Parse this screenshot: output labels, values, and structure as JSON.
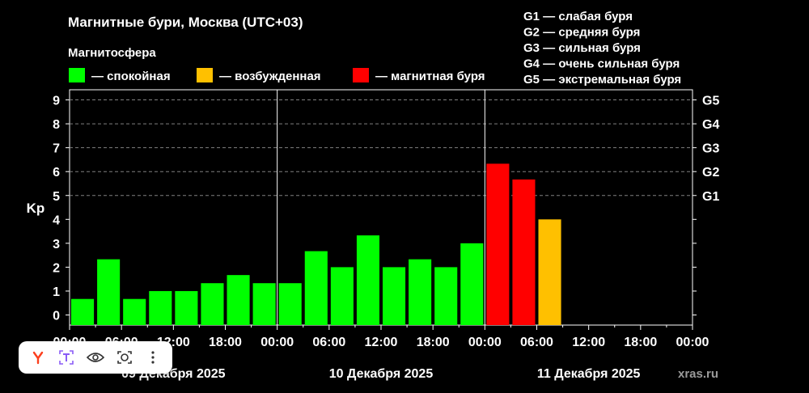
{
  "colors": {
    "background": "#000000",
    "quiet": "#00ff00",
    "excited": "#ffc000",
    "storm": "#ff0000",
    "text": "#ffffff",
    "grid": "#808080"
  },
  "chart_data": {
    "type": "bar",
    "title": "Магнитные бури, Москва (UTC+03)",
    "legend_title": "Магнитосфера",
    "legend": [
      {
        "label": "— спокойная",
        "color_key": "quiet"
      },
      {
        "label": "— возбужденная",
        "color_key": "excited"
      },
      {
        "label": "— магнитная буря",
        "color_key": "storm"
      }
    ],
    "g_scale_legend": [
      "G1 — слабая буря",
      "G2 — средняя буря",
      "G3 — сильная буря",
      "G4 — очень сильная буря",
      "G5 — экстремальная буря"
    ],
    "ylabel": "Kp",
    "ylim": [
      0,
      9
    ],
    "y_ticks": [
      "0",
      "1",
      "2",
      "3",
      "4",
      "5",
      "6",
      "7",
      "8",
      "9"
    ],
    "right_ticks": [
      {
        "label": "G1",
        "kp": 5
      },
      {
        "label": "G2",
        "kp": 6
      },
      {
        "label": "G3",
        "kp": 7
      },
      {
        "label": "G4",
        "kp": 8
      },
      {
        "label": "G5",
        "kp": 9
      }
    ],
    "x_tick_labels": [
      "00:00",
      "06:00",
      "12:00",
      "18:00",
      "00:00",
      "06:00",
      "12:00",
      "18:00",
      "00:00",
      "06:00",
      "12:00",
      "18:00",
      "00:00"
    ],
    "day_labels": [
      "09 Декабря 2025",
      "10 Декабря 2025",
      "11 Декабря 2025"
    ],
    "slots_total": 24,
    "bars": [
      {
        "slot": 0,
        "kp": 0.67,
        "level": "quiet"
      },
      {
        "slot": 1,
        "kp": 2.33,
        "level": "quiet"
      },
      {
        "slot": 2,
        "kp": 0.67,
        "level": "quiet"
      },
      {
        "slot": 3,
        "kp": 1.0,
        "level": "quiet"
      },
      {
        "slot": 4,
        "kp": 1.0,
        "level": "quiet"
      },
      {
        "slot": 5,
        "kp": 1.33,
        "level": "quiet"
      },
      {
        "slot": 6,
        "kp": 1.67,
        "level": "quiet"
      },
      {
        "slot": 7,
        "kp": 1.33,
        "level": "quiet"
      },
      {
        "slot": 8,
        "kp": 1.33,
        "level": "quiet"
      },
      {
        "slot": 9,
        "kp": 2.67,
        "level": "quiet"
      },
      {
        "slot": 10,
        "kp": 2.0,
        "level": "quiet"
      },
      {
        "slot": 11,
        "kp": 3.33,
        "level": "quiet"
      },
      {
        "slot": 12,
        "kp": 2.0,
        "level": "quiet"
      },
      {
        "slot": 13,
        "kp": 2.33,
        "level": "quiet"
      },
      {
        "slot": 14,
        "kp": 2.0,
        "level": "quiet"
      },
      {
        "slot": 15,
        "kp": 3.0,
        "level": "quiet"
      },
      {
        "slot": 16,
        "kp": 6.33,
        "level": "storm"
      },
      {
        "slot": 17,
        "kp": 5.67,
        "level": "storm"
      },
      {
        "slot": 18,
        "kp": 4.0,
        "level": "excited"
      }
    ]
  },
  "watermark": "xras.ru",
  "toolbar": {
    "icons": [
      "yandex-y-icon",
      "translate-text-icon",
      "eye-icon",
      "camera-lens-icon",
      "more-dots-icon"
    ]
  }
}
